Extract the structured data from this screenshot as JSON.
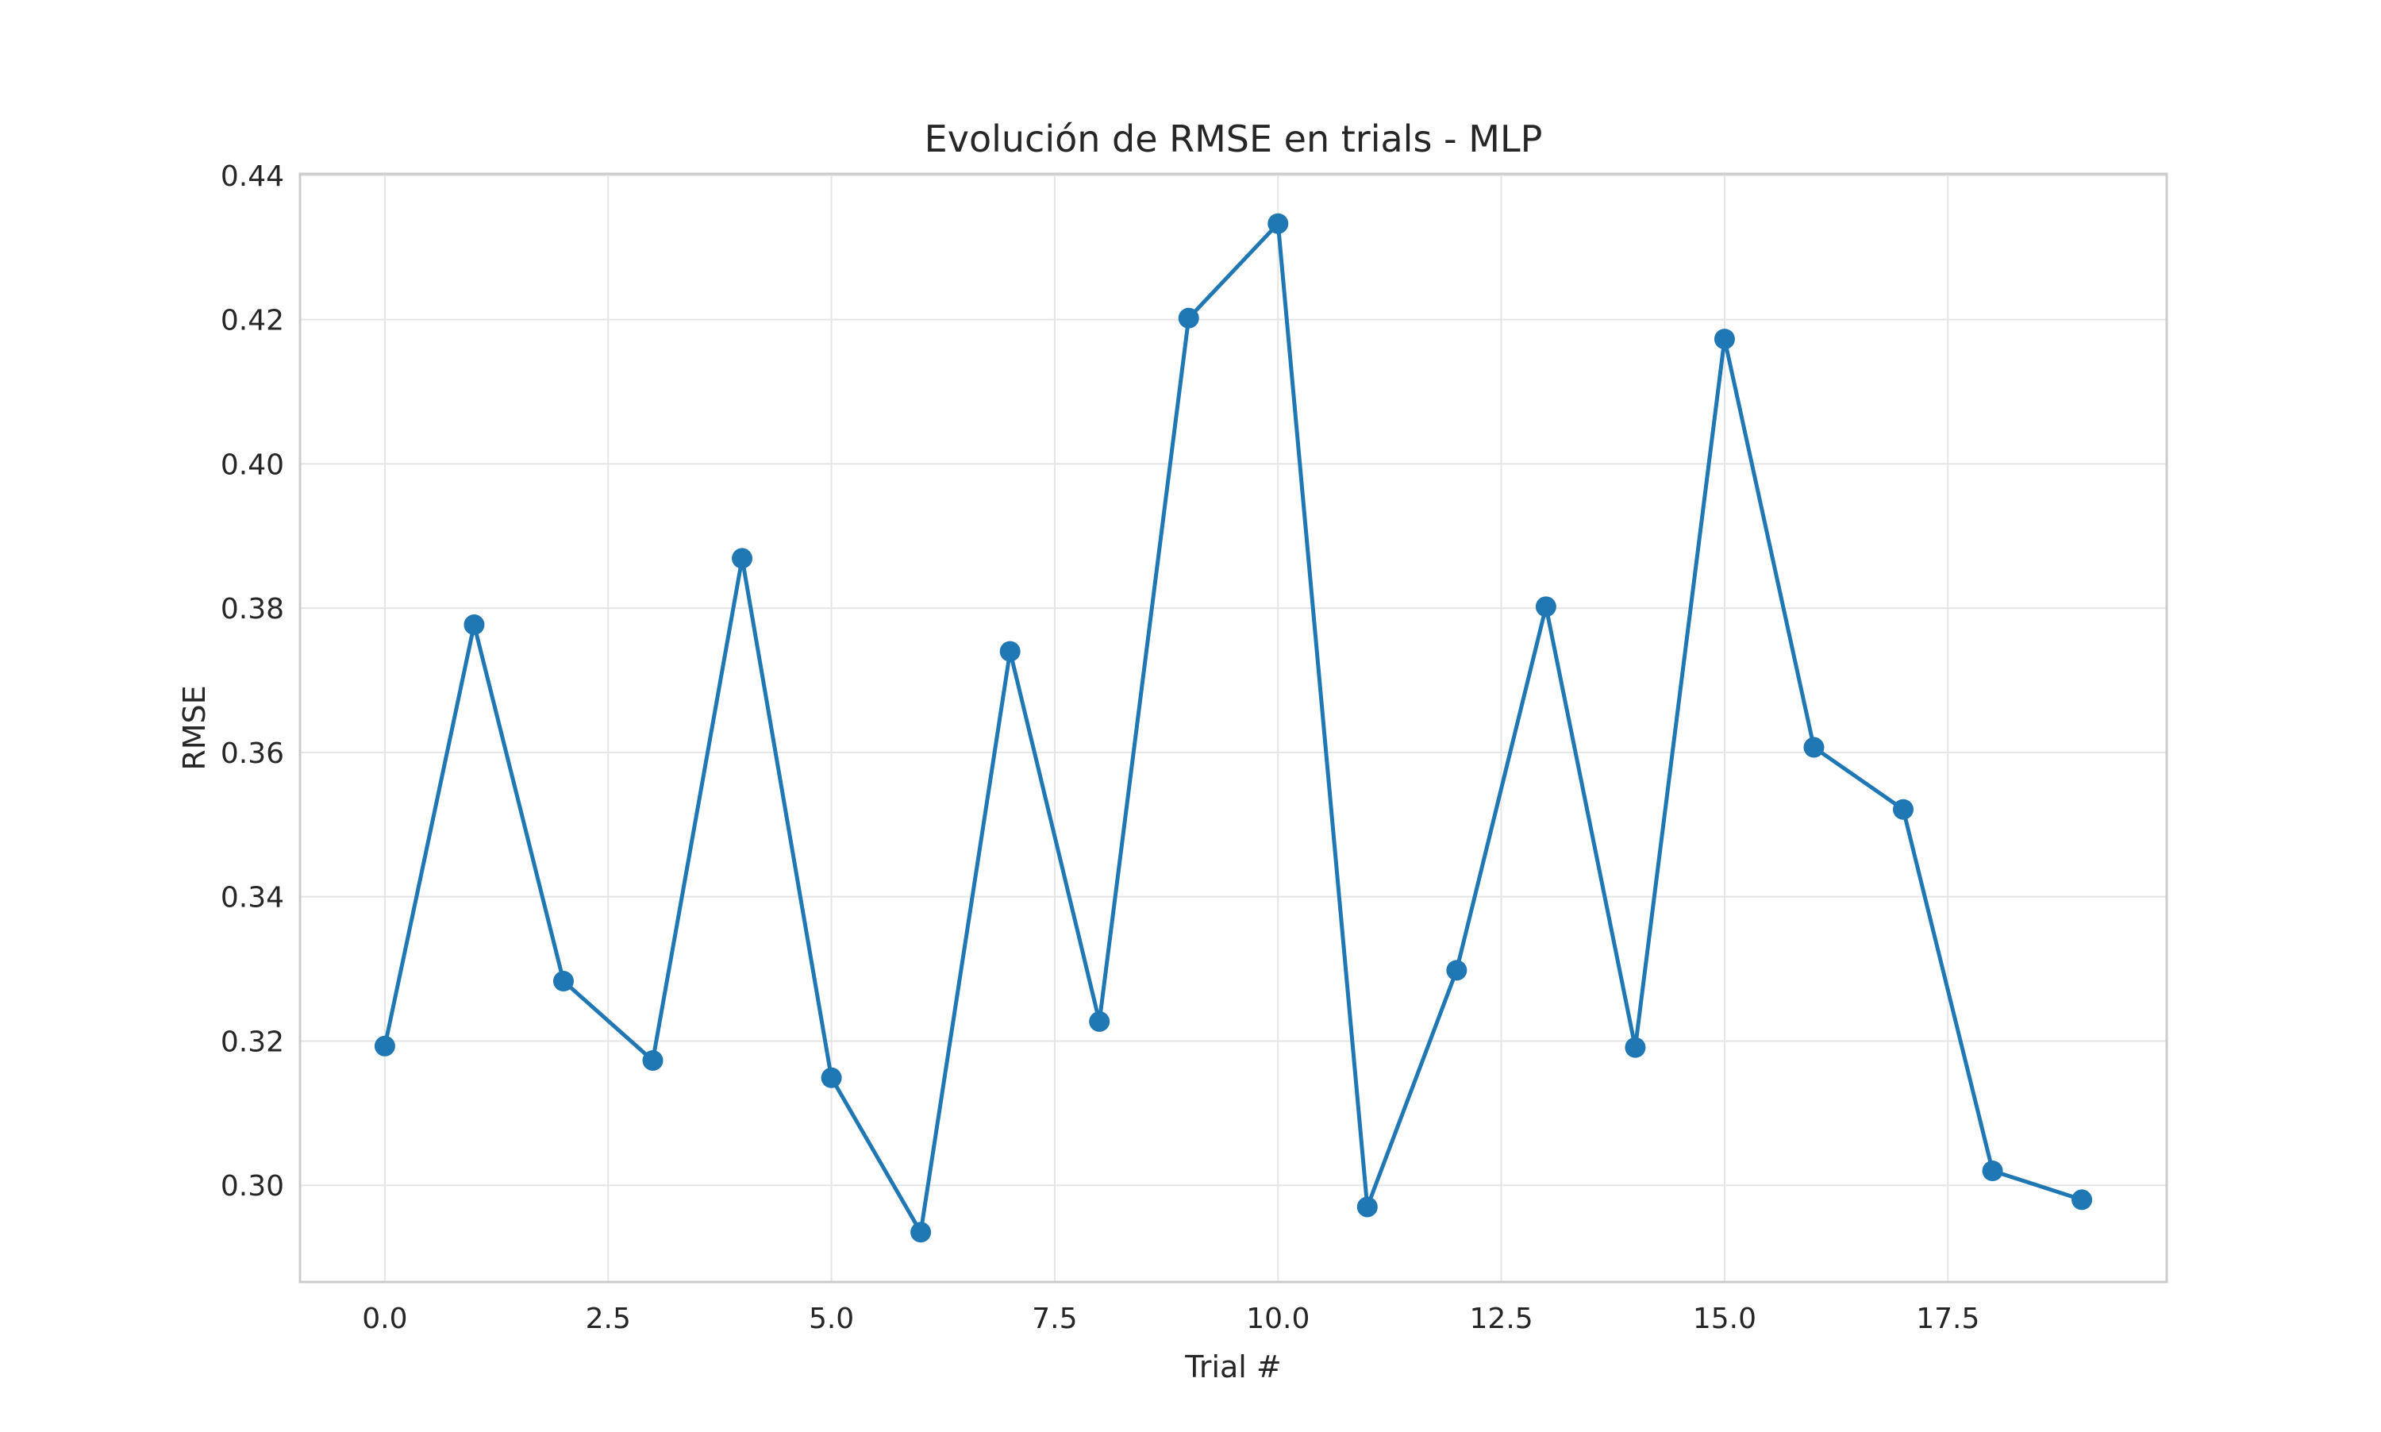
{
  "chart_data": {
    "type": "line",
    "title": "Evolución de RMSE en trials - MLP",
    "xlabel": "Trial #",
    "ylabel": "RMSE",
    "xlim": [
      -0.95,
      19.95
    ],
    "ylim": [
      0.2866,
      0.4402
    ],
    "xticks": [
      0.0,
      2.5,
      5.0,
      7.5,
      10.0,
      12.5,
      15.0,
      17.5
    ],
    "xtick_labels": [
      "0.0",
      "2.5",
      "5.0",
      "7.5",
      "10.0",
      "12.5",
      "15.0",
      "17.5"
    ],
    "yticks": [
      0.3,
      0.32,
      0.34,
      0.36,
      0.38,
      0.4,
      0.42,
      0.44
    ],
    "ytick_labels": [
      "0.30",
      "0.32",
      "0.34",
      "0.36",
      "0.38",
      "0.40",
      "0.42",
      "0.44"
    ],
    "grid": true,
    "color": "#1f77b4",
    "marker": "circle",
    "series": [
      {
        "x": [
          0,
          1,
          2,
          3,
          4,
          5,
          6,
          7,
          8,
          9,
          10,
          11,
          12,
          13,
          14,
          15,
          16,
          17,
          18,
          19
        ],
        "values": [
          0.3193,
          0.3777,
          0.3283,
          0.3173,
          0.3869,
          0.3149,
          0.2935,
          0.374,
          0.3227,
          0.4202,
          0.4333,
          0.297,
          0.3298,
          0.3802,
          0.3191,
          0.4173,
          0.3607,
          0.3521,
          0.302,
          0.298
        ]
      }
    ]
  }
}
